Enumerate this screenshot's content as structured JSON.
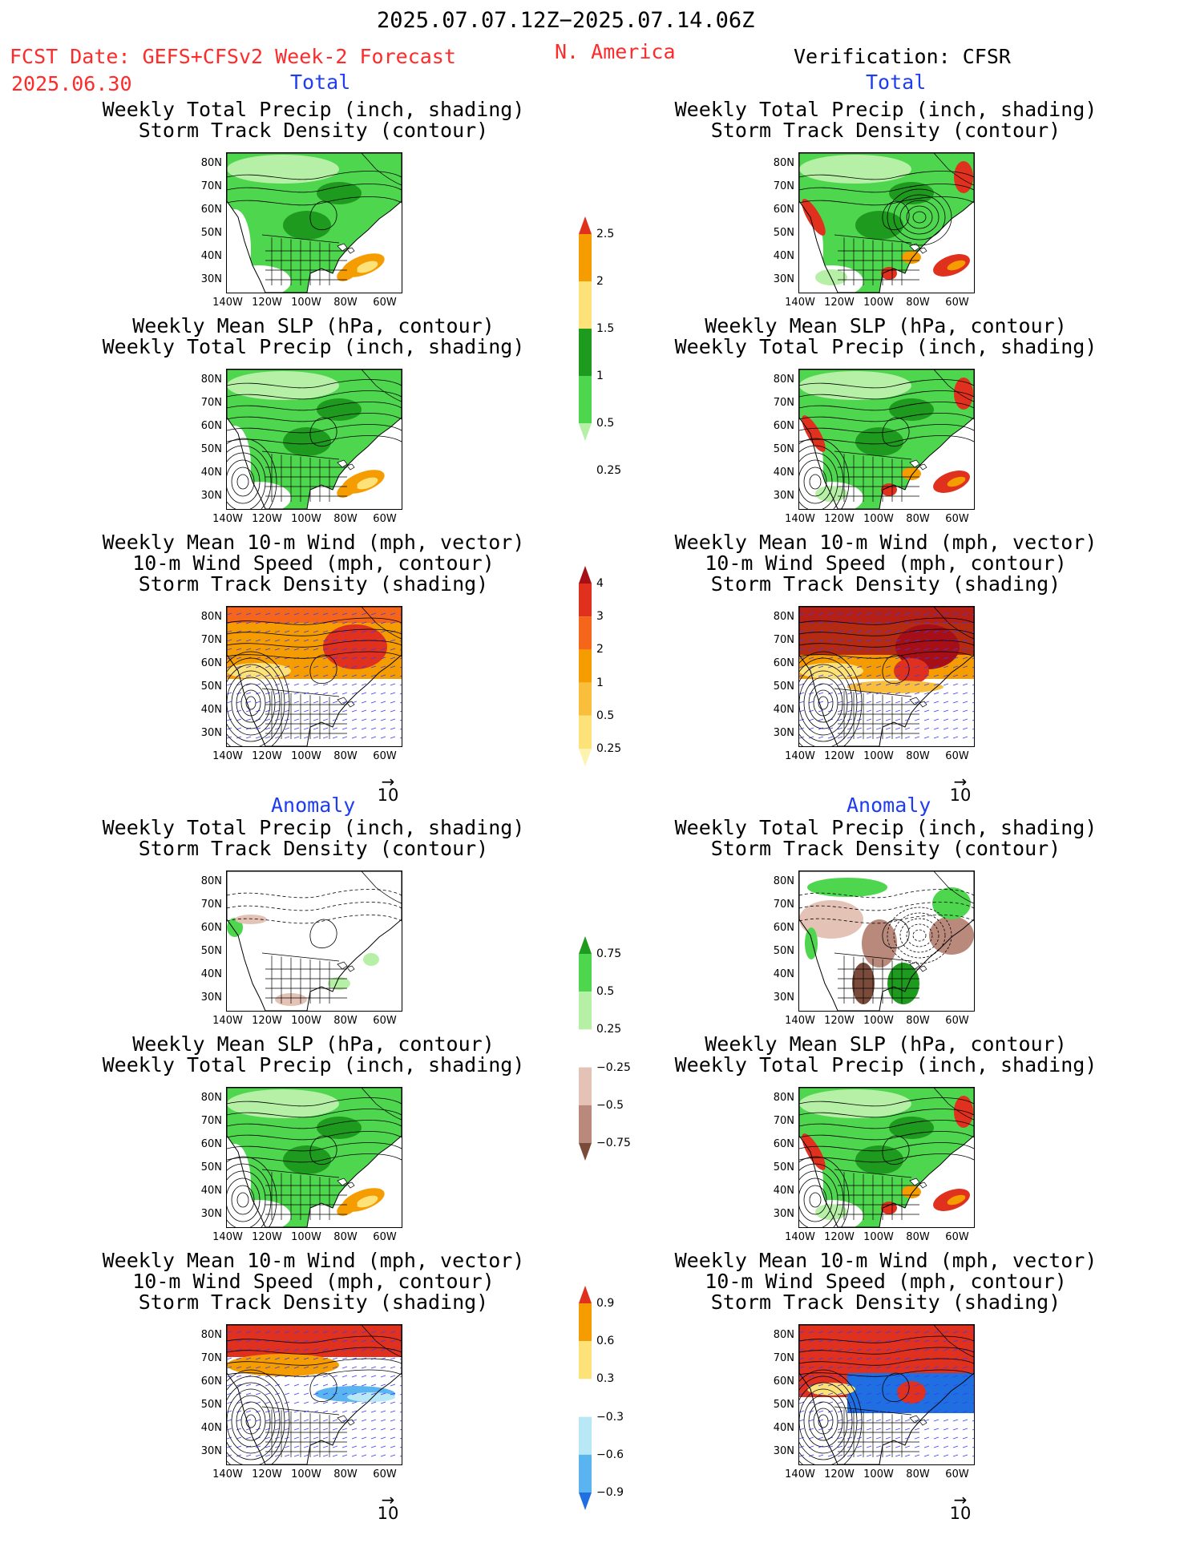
{
  "header": {
    "date_range": "2025.07.07.12Z−2025.07.14.06Z",
    "fcst_line1": "FCST Date: GEFS+CFSv2 Week-2 Forecast",
    "fcst_line2": "2025.06.30",
    "region": "N. America",
    "verification": "Verification: CFSR"
  },
  "sections": {
    "total": "Total",
    "anomaly": "Anomaly"
  },
  "panel_titles": {
    "precip_storm": [
      "Weekly Total Precip (inch, shading)",
      "Storm Track Density (contour)"
    ],
    "slp_precip": [
      "Weekly Mean SLP (hPa, contour)",
      "Weekly Total Precip (inch, shading)"
    ],
    "wind_storm": [
      "Weekly Mean 10-m Wind (mph, vector)",
      "10-m Wind Speed (mph, contour)",
      "Storm Track Density (shading)"
    ]
  },
  "axes": {
    "lat_labels": [
      "80N",
      "70N",
      "60N",
      "50N",
      "40N",
      "30N"
    ],
    "lon_labels": [
      "140W",
      "120W",
      "100W",
      "80W",
      "60W"
    ]
  },
  "vector_reference": {
    "arrow": "→",
    "value": "10"
  },
  "colorbars": {
    "precip_total": {
      "labels": [
        "2.5",
        "2",
        "1.5",
        "1",
        "0.5",
        "0.25"
      ],
      "colors": [
        "#e0301e",
        "#f59c00",
        "#fde27a",
        "#1e9a1e",
        "#4fd64f",
        "#b6f0a6"
      ]
    },
    "storm_total": {
      "labels": [
        "4",
        "3",
        "2",
        "1",
        "0.5",
        "0.25"
      ],
      "colors": [
        "#a50f15",
        "#e0301e",
        "#f5661b",
        "#f59c00",
        "#f8be3c",
        "#fde27a",
        "#fdf3b0"
      ]
    },
    "precip_anom": {
      "labels": [
        "0.75",
        "0.5",
        "0.25",
        "−0.25",
        "−0.5",
        "−0.75"
      ],
      "colors": [
        "#1e9a1e",
        "#4fd64f",
        "#b6f0a6",
        "#ffffff",
        "#e4c3b6",
        "#b98a7c",
        "#7a4a3a"
      ]
    },
    "storm_anom": {
      "labels": [
        "0.9",
        "0.6",
        "0.3",
        "−0.3",
        "−0.6",
        "−0.9"
      ],
      "colors": [
        "#e0301e",
        "#f59c00",
        "#fde27a",
        "#ffffff",
        "#b8e8f5",
        "#5ab4f0",
        "#1f6fe0"
      ]
    }
  },
  "colors": {
    "header_red": "#ff2a2a",
    "section_blue": "#1f3df0"
  }
}
